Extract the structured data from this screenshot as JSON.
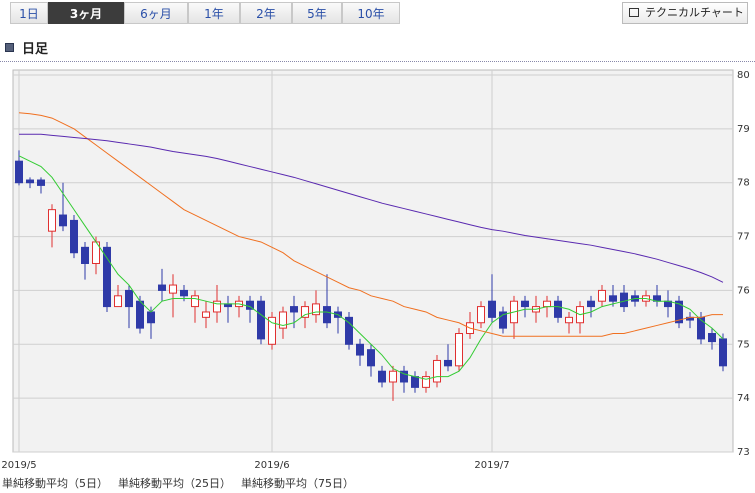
{
  "tabs": [
    "1日",
    "3ヶ月",
    "6ヶ月",
    "1年",
    "2年",
    "5年",
    "10年"
  ],
  "selected_tab": 1,
  "button": "テクニカルチャート",
  "section_title": "日足",
  "chart_data": {
    "type": "candlestick",
    "categories": [
      "2019/5",
      null,
      null,
      null,
      null,
      null,
      null,
      null,
      null,
      null,
      null,
      null,
      null,
      null,
      null,
      null,
      null,
      null,
      null,
      null,
      null,
      null,
      null,
      "2019/6",
      null,
      null,
      null,
      null,
      null,
      null,
      null,
      null,
      null,
      null,
      null,
      null,
      null,
      null,
      null,
      null,
      null,
      null,
      null,
      "2019/7",
      null,
      null,
      null,
      null,
      null,
      null,
      null,
      null,
      null,
      null,
      null,
      null,
      null,
      null,
      null,
      null,
      null,
      null,
      null,
      null,
      null
    ],
    "open": [
      78.4,
      78.05,
      78.05,
      77.1,
      77.4,
      77.3,
      76.8,
      76.5,
      76.8,
      75.7,
      76.0,
      75.8,
      75.6,
      76.1,
      75.95,
      76.0,
      75.7,
      75.5,
      75.6,
      75.75,
      75.7,
      75.8,
      75.8,
      75.0,
      75.3,
      75.7,
      75.5,
      75.55,
      75.7,
      75.6,
      75.5,
      75.0,
      74.9,
      74.5,
      74.3,
      74.5,
      74.4,
      74.2,
      74.3,
      74.7,
      74.6,
      75.2,
      75.4,
      75.8,
      75.6,
      75.4,
      75.8,
      75.6,
      75.7,
      75.8,
      75.4,
      75.4,
      75.8,
      75.8,
      75.9,
      75.95,
      75.9,
      75.8,
      75.9,
      75.8,
      75.8,
      75.5,
      75.5,
      75.2,
      75.1
    ],
    "high": [
      78.6,
      78.1,
      78.1,
      77.6,
      78.0,
      77.4,
      76.9,
      77.0,
      76.9,
      76.1,
      76.1,
      75.9,
      75.7,
      76.4,
      76.3,
      76.1,
      76.0,
      75.8,
      76.1,
      75.9,
      75.9,
      75.9,
      75.9,
      75.6,
      75.7,
      75.9,
      75.8,
      76.0,
      76.3,
      75.7,
      75.6,
      75.1,
      75.0,
      74.6,
      74.6,
      74.6,
      74.5,
      74.5,
      74.8,
      75.0,
      75.3,
      75.6,
      75.8,
      76.3,
      75.7,
      75.9,
      75.9,
      75.9,
      75.9,
      75.9,
      75.6,
      75.8,
      75.9,
      76.1,
      76.1,
      76.1,
      76.0,
      76.0,
      76.1,
      76.0,
      75.9,
      75.6,
      75.6,
      75.3,
      75.2
    ],
    "low": [
      77.95,
      77.9,
      77.8,
      76.8,
      77.1,
      76.6,
      76.2,
      76.3,
      75.6,
      75.7,
      75.3,
      75.2,
      75.1,
      75.8,
      75.5,
      75.8,
      75.4,
      75.3,
      75.4,
      75.4,
      75.5,
      75.4,
      75.0,
      74.9,
      75.1,
      75.3,
      75.3,
      75.4,
      75.3,
      75.2,
      74.9,
      74.6,
      74.4,
      74.2,
      73.95,
      74.1,
      74.1,
      74.1,
      74.2,
      74.5,
      74.5,
      75.1,
      75.3,
      75.4,
      75.2,
      75.1,
      75.5,
      75.4,
      75.5,
      75.4,
      75.2,
      75.2,
      75.5,
      75.7,
      75.7,
      75.6,
      75.7,
      75.7,
      75.7,
      75.5,
      75.3,
      75.3,
      75.0,
      74.9,
      74.5
    ],
    "close": [
      78.0,
      78.0,
      77.95,
      77.5,
      77.2,
      76.7,
      76.5,
      76.9,
      75.7,
      75.9,
      75.7,
      75.3,
      75.4,
      76.0,
      76.1,
      75.9,
      75.9,
      75.6,
      75.8,
      75.7,
      75.8,
      75.65,
      75.1,
      75.5,
      75.6,
      75.6,
      75.7,
      75.75,
      75.4,
      75.5,
      75.0,
      74.8,
      74.6,
      74.3,
      74.5,
      74.3,
      74.2,
      74.4,
      74.7,
      74.6,
      75.2,
      75.4,
      75.7,
      75.5,
      75.3,
      75.8,
      75.7,
      75.7,
      75.8,
      75.5,
      75.5,
      75.7,
      75.7,
      76.0,
      75.8,
      75.7,
      75.8,
      75.9,
      75.8,
      75.7,
      75.4,
      75.45,
      75.1,
      75.05,
      74.6
    ],
    "up_color": "#e03030",
    "down_color": "#2f3aa8",
    "series": [
      {
        "name": "単純移動平均（5日）",
        "color": "#33cc33",
        "values": [
          78.5,
          78.4,
          78.3,
          78.1,
          77.8,
          77.5,
          77.2,
          76.9,
          76.6,
          76.3,
          76.1,
          75.8,
          75.6,
          75.8,
          75.85,
          75.85,
          75.85,
          75.8,
          75.75,
          75.75,
          75.75,
          75.7,
          75.55,
          75.4,
          75.35,
          75.4,
          75.55,
          75.6,
          75.6,
          75.55,
          75.4,
          75.2,
          75.0,
          74.8,
          74.55,
          74.45,
          74.4,
          74.35,
          74.4,
          74.4,
          74.5,
          74.75,
          75.1,
          75.4,
          75.55,
          75.6,
          75.65,
          75.65,
          75.7,
          75.7,
          75.65,
          75.55,
          75.6,
          75.7,
          75.75,
          75.8,
          75.85,
          75.85,
          75.8,
          75.8,
          75.75,
          75.65,
          75.45,
          75.3,
          75.1
        ]
      },
      {
        "name": "単純移動平均（25日）",
        "color": "#f07020",
        "values": [
          79.3,
          79.28,
          79.25,
          79.2,
          79.1,
          79.0,
          78.85,
          78.7,
          78.55,
          78.4,
          78.25,
          78.1,
          77.95,
          77.8,
          77.65,
          77.5,
          77.4,
          77.3,
          77.2,
          77.1,
          77.0,
          76.95,
          76.9,
          76.8,
          76.7,
          76.55,
          76.45,
          76.35,
          76.25,
          76.15,
          76.05,
          76.0,
          75.9,
          75.85,
          75.8,
          75.7,
          75.65,
          75.6,
          75.5,
          75.45,
          75.4,
          75.3,
          75.25,
          75.2,
          75.15,
          75.15,
          75.15,
          75.15,
          75.15,
          75.15,
          75.15,
          75.15,
          75.15,
          75.15,
          75.2,
          75.2,
          75.25,
          75.3,
          75.35,
          75.4,
          75.45,
          75.5,
          75.5,
          75.55,
          75.55
        ]
      },
      {
        "name": "単純移動平均（75日）",
        "color": "#5a2ab0",
        "values": [
          78.9,
          78.9,
          78.9,
          78.88,
          78.86,
          78.84,
          78.82,
          78.8,
          78.78,
          78.75,
          78.72,
          78.69,
          78.66,
          78.62,
          78.58,
          78.55,
          78.52,
          78.49,
          78.45,
          78.4,
          78.35,
          78.3,
          78.25,
          78.2,
          78.15,
          78.1,
          78.04,
          77.98,
          77.92,
          77.86,
          77.8,
          77.74,
          77.68,
          77.62,
          77.57,
          77.52,
          77.47,
          77.42,
          77.37,
          77.32,
          77.27,
          77.22,
          77.17,
          77.13,
          77.1,
          77.06,
          77.02,
          76.99,
          76.96,
          76.93,
          76.9,
          76.87,
          76.84,
          76.8,
          76.76,
          76.72,
          76.68,
          76.63,
          76.58,
          76.52,
          76.46,
          76.4,
          76.33,
          76.25,
          76.15
        ]
      }
    ],
    "ylim": [
      73,
      80
    ],
    "yticks": [
      73,
      74,
      75,
      76,
      77,
      78,
      79,
      80
    ],
    "grid": true
  }
}
